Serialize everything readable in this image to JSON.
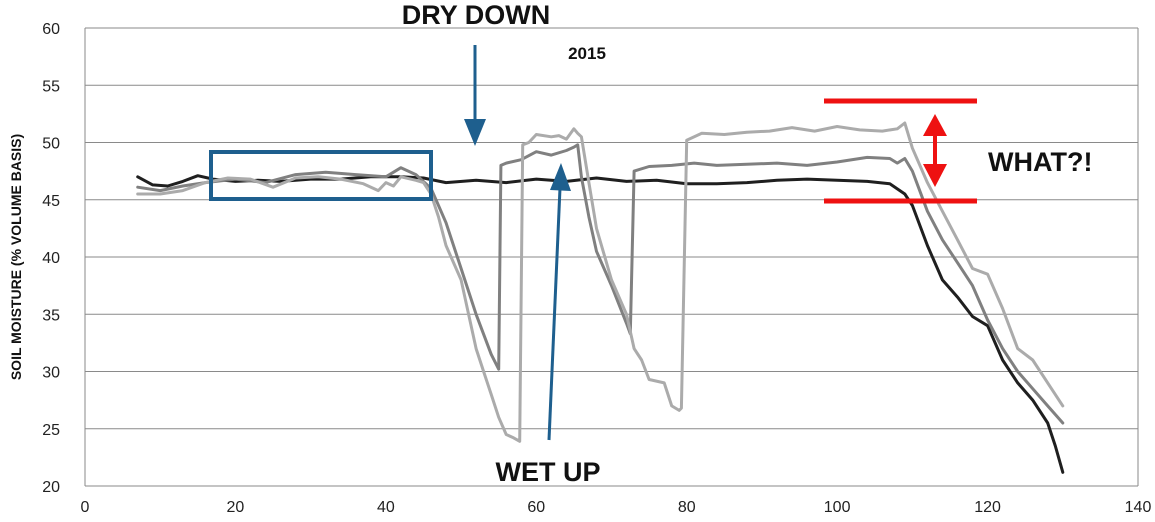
{
  "chart_data": {
    "type": "line",
    "title": "",
    "xlabel": "",
    "ylabel": "SOIL MOISTURE (% VOLUME BASIS)",
    "xlim": [
      0,
      140
    ],
    "ylim": [
      20,
      60
    ],
    "xticks": [
      0,
      20,
      40,
      60,
      80,
      100,
      120,
      140
    ],
    "yticks": [
      20,
      25,
      30,
      35,
      40,
      45,
      50,
      55,
      60
    ],
    "grid": "horizontal",
    "legend": "none",
    "series": [
      {
        "color": "#1f1f1f",
        "x": [
          7,
          9,
          11,
          13,
          15,
          17,
          20,
          23,
          26,
          30,
          34,
          38,
          42,
          45,
          48,
          52,
          56,
          60,
          64,
          68,
          72,
          76,
          80,
          84,
          88,
          92,
          96,
          100,
          104,
          107,
          109,
          110,
          112,
          114,
          116,
          118,
          120,
          122,
          124,
          126,
          128,
          129,
          130
        ],
        "values": [
          47.0,
          46.3,
          46.2,
          46.6,
          47.1,
          46.8,
          46.6,
          46.7,
          46.6,
          46.8,
          46.8,
          47.0,
          47.0,
          46.9,
          46.5,
          46.7,
          46.5,
          46.8,
          46.6,
          46.9,
          46.6,
          46.7,
          46.4,
          46.4,
          46.5,
          46.7,
          46.8,
          46.7,
          46.6,
          46.4,
          45.5,
          44.5,
          41.0,
          38.0,
          36.5,
          34.8,
          34.0,
          31.0,
          29.0,
          27.5,
          25.5,
          23.5,
          21.2
        ]
      },
      {
        "color": "#808080",
        "x": [
          7,
          10,
          13,
          16,
          20,
          24,
          28,
          32,
          36,
          40,
          42,
          44,
          46,
          47,
          48,
          50,
          52,
          54,
          55,
          55.3,
          56,
          58,
          60,
          62,
          64,
          65,
          65.5,
          66,
          67,
          68,
          70,
          72,
          72.5,
          73,
          75,
          78,
          81,
          84,
          88,
          92,
          96,
          100,
          104,
          107,
          108,
          109,
          110,
          112,
          114,
          116,
          118,
          120,
          122,
          124,
          126,
          128,
          130
        ],
        "values": [
          46.1,
          45.8,
          46.2,
          46.5,
          46.8,
          46.5,
          47.2,
          47.4,
          47.2,
          47.0,
          47.8,
          47.2,
          46.0,
          44.5,
          43.0,
          39.0,
          35.0,
          31.5,
          30.2,
          48.0,
          48.2,
          48.5,
          49.2,
          48.9,
          49.3,
          49.6,
          49.8,
          47.0,
          43.5,
          40.5,
          37.5,
          34.2,
          33.3,
          47.5,
          47.9,
          48.0,
          48.2,
          48.0,
          48.1,
          48.2,
          48.0,
          48.3,
          48.7,
          48.6,
          48.2,
          48.6,
          47.5,
          44.0,
          41.5,
          39.5,
          37.5,
          34.5,
          32.0,
          30.0,
          28.5,
          27.0,
          25.5
        ]
      },
      {
        "color": "#ababab",
        "x": [
          7,
          10,
          13,
          16,
          19,
          22,
          25,
          28,
          31,
          34,
          37,
          39,
          40,
          41,
          42,
          44,
          45,
          46,
          47,
          48,
          50,
          51,
          52,
          53,
          54,
          55,
          56,
          57,
          57.8,
          58.2,
          59,
          60,
          62,
          63,
          64,
          65,
          65.5,
          66,
          67,
          68,
          70,
          72,
          73,
          74,
          75,
          77,
          78,
          79,
          79.3,
          80,
          82,
          85,
          88,
          91,
          94,
          97,
          100,
          103,
          106,
          108,
          109,
          110,
          112,
          114,
          116,
          118,
          120,
          122,
          124,
          126,
          128,
          130
        ],
        "values": [
          45.5,
          45.5,
          45.8,
          46.5,
          46.9,
          46.8,
          46.1,
          46.9,
          47.0,
          46.8,
          46.4,
          45.8,
          46.5,
          46.2,
          47.0,
          46.7,
          46.5,
          45.5,
          43.5,
          41.0,
          38.0,
          35.0,
          32.0,
          30.0,
          28.0,
          26.0,
          24.5,
          24.2,
          23.9,
          49.8,
          50.0,
          50.7,
          50.5,
          50.6,
          50.3,
          51.2,
          50.8,
          50.5,
          46.5,
          42.5,
          38.0,
          35.0,
          32.0,
          31.0,
          29.3,
          29.0,
          27.0,
          26.6,
          26.8,
          50.2,
          50.8,
          50.7,
          50.9,
          51.0,
          51.3,
          51.0,
          51.4,
          51.1,
          51.0,
          51.2,
          51.7,
          49.5,
          46.5,
          44.0,
          41.5,
          39.0,
          38.5,
          35.5,
          32.0,
          31.0,
          29.0,
          27.0
        ]
      }
    ],
    "annotations": {
      "dry_down": "DRY DOWN",
      "wet_up": "WET UP",
      "year": "2015",
      "what": "WHAT?!"
    }
  },
  "colors": {
    "annotation_blue": "#1e5f8e",
    "annotation_red": "#ee1111",
    "grid": "#8a8a8a"
  }
}
